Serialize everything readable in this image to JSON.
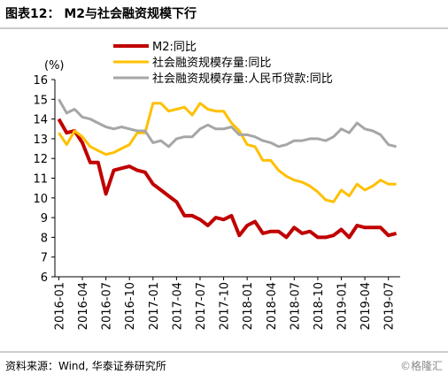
{
  "chart_data": {
    "type": "line",
    "title": "图表12： M2与社会融资规模下行",
    "y_unit": "(%)",
    "source": "资料来源：Wind, 华泰证券研究所",
    "watermark": "©格隆汇",
    "categories": [
      "2016-01",
      null,
      null,
      "2016-04",
      null,
      null,
      "2016-07",
      null,
      null,
      "2016-10",
      null,
      null,
      "2017-01",
      null,
      null,
      "2017-04",
      null,
      null,
      "2017-07",
      null,
      null,
      "2017-10",
      null,
      null,
      "2018-01",
      null,
      null,
      "2018-04",
      null,
      null,
      "2018-07",
      null,
      null,
      "2018-10",
      null,
      null,
      "2019-01",
      null,
      null,
      "2019-04",
      null,
      null,
      "2019-07",
      null
    ],
    "series": [
      {
        "name": "M2:同比",
        "color": "#c00000",
        "width": 4,
        "values": [
          14.0,
          13.3,
          13.4,
          12.8,
          11.8,
          11.8,
          10.2,
          11.4,
          11.5,
          11.6,
          11.4,
          11.3,
          10.7,
          10.4,
          10.1,
          9.8,
          9.1,
          9.1,
          8.9,
          8.6,
          9.0,
          8.9,
          9.1,
          8.1,
          8.6,
          8.8,
          8.2,
          8.3,
          8.3,
          8.0,
          8.5,
          8.2,
          8.3,
          8.0,
          8.0,
          8.1,
          8.4,
          8.0,
          8.6,
          8.5,
          8.5,
          8.5,
          8.1,
          8.2
        ]
      },
      {
        "name": "社会融资规模存量:同比",
        "color": "#ffc000",
        "width": 3,
        "values": [
          13.3,
          12.7,
          13.4,
          13.1,
          12.6,
          12.4,
          12.2,
          12.3,
          12.5,
          12.7,
          13.3,
          13.3,
          14.8,
          14.8,
          14.4,
          14.5,
          14.6,
          14.2,
          14.8,
          14.5,
          14.4,
          14.4,
          13.8,
          13.4,
          12.7,
          12.6,
          11.9,
          11.9,
          11.4,
          11.1,
          10.9,
          10.8,
          10.6,
          10.3,
          9.9,
          9.8,
          10.4,
          10.1,
          10.7,
          10.4,
          10.6,
          10.9,
          10.7,
          10.7
        ]
      },
      {
        "name": "社会融资规模存量:人民币贷款:同比",
        "color": "#a6a6a6",
        "width": 3,
        "values": [
          15.0,
          14.3,
          14.5,
          14.1,
          14.0,
          13.8,
          13.6,
          13.5,
          13.6,
          13.5,
          13.4,
          13.4,
          12.8,
          12.9,
          12.6,
          13.0,
          13.1,
          13.1,
          13.5,
          13.7,
          13.5,
          13.5,
          13.6,
          13.2,
          13.2,
          13.1,
          12.9,
          12.8,
          12.6,
          12.7,
          12.9,
          12.9,
          13.0,
          13.0,
          12.9,
          13.1,
          13.5,
          13.3,
          13.8,
          13.5,
          13.4,
          13.2,
          12.7,
          12.6
        ]
      }
    ],
    "ylim": [
      6,
      16
    ],
    "yticks": [
      6,
      7,
      8,
      9,
      10,
      11,
      12,
      13,
      14,
      15,
      16
    ]
  }
}
